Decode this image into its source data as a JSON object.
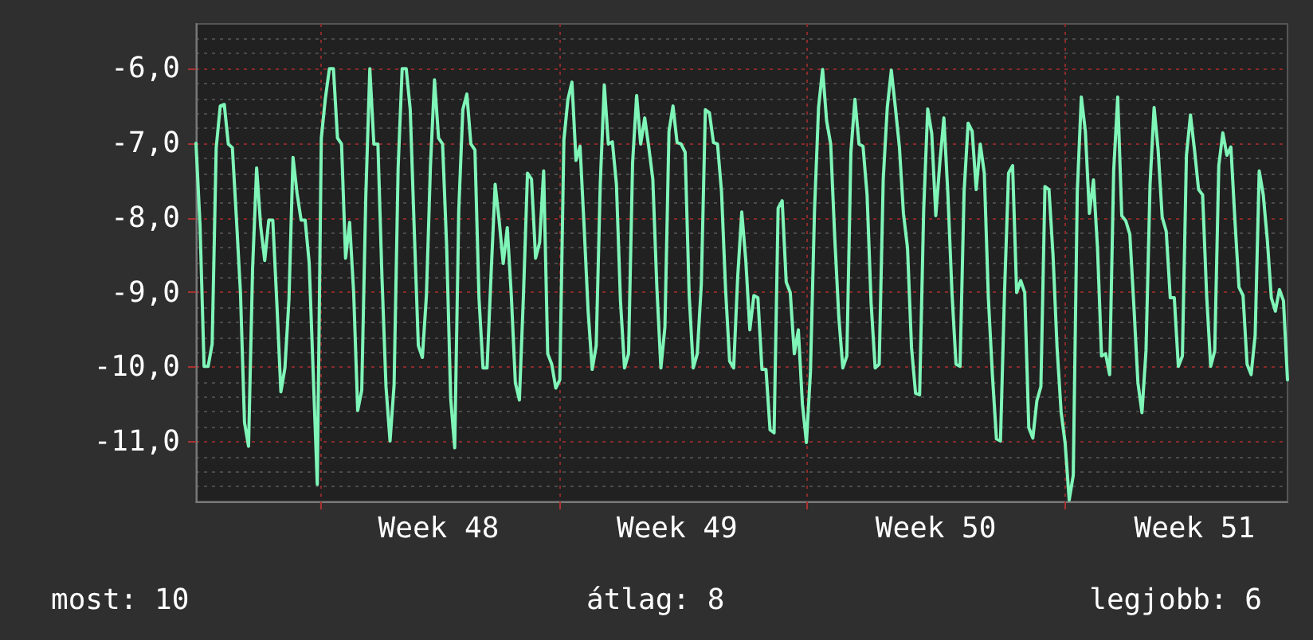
{
  "chart_data": {
    "type": "line",
    "grid": true,
    "marker": "none",
    "line_style": "solid",
    "ylim": [
      -11.8,
      -5.4
    ],
    "yticks": [
      {
        "value": -11,
        "label": "-11,0"
      },
      {
        "value": -10,
        "label": "-10,0"
      },
      {
        "value": -9,
        "label": "-9,0"
      },
      {
        "value": -8,
        "label": "-8,0"
      },
      {
        "value": -7,
        "label": "-7,0"
      },
      {
        "value": -6,
        "label": "-6,0"
      }
    ],
    "annotations": [
      "most: 10",
      "átlag: 8",
      "legjobb: 6"
    ],
    "categories": [
      null,
      null,
      null,
      null,
      null,
      null,
      null,
      null,
      null,
      null,
      null,
      null,
      null,
      null,
      null,
      null,
      null,
      null,
      null,
      null,
      null,
      null,
      null,
      null,
      null,
      null,
      null,
      null,
      null,
      null,
      null,
      null,
      null,
      null,
      null,
      null,
      null,
      null,
      null,
      null,
      null,
      null,
      null,
      null,
      null,
      null,
      null,
      null,
      null,
      null,
      null,
      null,
      null,
      null,
      null,
      null,
      null,
      null,
      null,
      null,
      "Week 48",
      null,
      null,
      null,
      null,
      null,
      null,
      null,
      null,
      null,
      null,
      null,
      null,
      null,
      null,
      null,
      null,
      null,
      null,
      null,
      null,
      null,
      null,
      null,
      null,
      null,
      null,
      null,
      null,
      null,
      null,
      null,
      null,
      null,
      null,
      null,
      null,
      null,
      null,
      null,
      null,
      null,
      null,
      null,
      null,
      null,
      null,
      null,
      null,
      null,
      null,
      null,
      null,
      null,
      null,
      null,
      null,
      null,
      null,
      "Week 49",
      null,
      null,
      null,
      null,
      null,
      null,
      null,
      null,
      null,
      null,
      null,
      null,
      null,
      null,
      null,
      null,
      null,
      null,
      null,
      null,
      null,
      null,
      null,
      null,
      null,
      null,
      null,
      null,
      null,
      null,
      null,
      null,
      null,
      null,
      null,
      null,
      null,
      null,
      null,
      null,
      null,
      null,
      null,
      null,
      null,
      null,
      null,
      null,
      null,
      null,
      null,
      null,
      null,
      null,
      null,
      null,
      null,
      null,
      null,
      null,
      null,
      null,
      null,
      "Week 50",
      null,
      null,
      null,
      null,
      null,
      null,
      null,
      null,
      null,
      null,
      null,
      null,
      null,
      null,
      null,
      null,
      null,
      null,
      null,
      null,
      null,
      null,
      null,
      null,
      null,
      null,
      null,
      null,
      null,
      null,
      null,
      null,
      null,
      null,
      null,
      null,
      null,
      null,
      null,
      null,
      null,
      null,
      null,
      null,
      null,
      null,
      null,
      null,
      null,
      null,
      null,
      null,
      null,
      null,
      null,
      null,
      null,
      null,
      null,
      null,
      null,
      null,
      null,
      "Week 51",
      null,
      null,
      null,
      null,
      null,
      null,
      null,
      null,
      null,
      null,
      null,
      null,
      null,
      null,
      null,
      null,
      null,
      null,
      null,
      null,
      null,
      null,
      null
    ],
    "series": [
      {
        "color": "#7ff5b8",
        "values": [
          -7.0,
          -8.1,
          -9.99,
          -9.99,
          -9.69,
          -7.06,
          -6.5,
          -6.48,
          -7.01,
          -7.06,
          -8.01,
          -9.0,
          -10.74,
          -11.06,
          -8.68,
          -7.33,
          -8.11,
          -8.57,
          -8.03,
          -8.03,
          -9.14,
          -10.33,
          -10.01,
          -9.09,
          -7.19,
          -7.67,
          -8.03,
          -8.03,
          -8.6,
          -10.09,
          -11.57,
          -6.93,
          -6.4,
          -6.0,
          -6.0,
          -6.93,
          -7.01,
          -8.54,
          -8.06,
          -9.0,
          -10.58,
          -10.31,
          -7.72,
          -6.0,
          -7.01,
          -7.01,
          -8.79,
          -10.26,
          -10.99,
          -10.24,
          -7.33,
          -6.0,
          -6.0,
          -6.55,
          -8.18,
          -9.71,
          -9.87,
          -9.04,
          -7.3,
          -6.15,
          -6.93,
          -7.01,
          -8.38,
          -10.42,
          -11.08,
          -7.9,
          -6.55,
          -6.34,
          -7.01,
          -7.09,
          -9.07,
          -10.01,
          -10.01,
          -8.75,
          -7.55,
          -8.04,
          -8.61,
          -8.13,
          -9.04,
          -10.21,
          -10.44,
          -9.04,
          -7.4,
          -7.48,
          -8.54,
          -8.33,
          -7.37,
          -9.82,
          -9.96,
          -10.28,
          -10.17,
          -6.96,
          -6.41,
          -6.18,
          -7.23,
          -7.04,
          -8.11,
          -9.25,
          -10.03,
          -9.71,
          -7.55,
          -6.22,
          -7.01,
          -6.98,
          -7.55,
          -9.11,
          -10.01,
          -9.82,
          -7.26,
          -6.36,
          -7.01,
          -6.66,
          -7.05,
          -7.48,
          -8.93,
          -10.01,
          -9.46,
          -6.84,
          -6.5,
          -6.99,
          -7.01,
          -7.12,
          -9.04,
          -10.01,
          -9.82,
          -8.89,
          -6.55,
          -6.59,
          -6.99,
          -7.01,
          -7.65,
          -8.96,
          -9.92,
          -10.01,
          -8.79,
          -7.92,
          -8.57,
          -9.5,
          -9.04,
          -9.07,
          -10.03,
          -10.03,
          -10.84,
          -10.88,
          -7.87,
          -7.77,
          -8.86,
          -9.0,
          -9.82,
          -9.5,
          -10.49,
          -11.01,
          -10.06,
          -7.9,
          -6.52,
          -6.01,
          -6.7,
          -7.01,
          -8.26,
          -9.32,
          -10.01,
          -9.85,
          -7.12,
          -6.41,
          -7.01,
          -7.04,
          -7.69,
          -9.14,
          -10.01,
          -9.96,
          -7.48,
          -6.52,
          -6.02,
          -6.52,
          -7.05,
          -7.94,
          -8.4,
          -9.74,
          -10.35,
          -10.37,
          -7.9,
          -6.54,
          -6.87,
          -7.97,
          -7.26,
          -6.66,
          -7.69,
          -9.0,
          -9.96,
          -9.99,
          -7.65,
          -6.73,
          -6.84,
          -7.62,
          -7.01,
          -7.4,
          -9.07,
          -10.1,
          -10.96,
          -10.99,
          -9.0,
          -7.4,
          -7.3,
          -9.0,
          -8.84,
          -9.0,
          -10.81,
          -10.95,
          -10.45,
          -10.26,
          -7.58,
          -7.62,
          -8.5,
          -9.74,
          -10.6,
          -11.02,
          -11.78,
          -11.45,
          -7.65,
          -6.38,
          -6.84,
          -7.94,
          -7.49,
          -8.4,
          -9.85,
          -9.82,
          -10.1,
          -7.37,
          -6.38,
          -7.97,
          -8.04,
          -8.22,
          -9.18,
          -10.21,
          -10.61,
          -9.78,
          -7.55,
          -6.52,
          -7.09,
          -7.99,
          -8.18,
          -9.07,
          -9.07,
          -9.99,
          -9.85,
          -7.16,
          -6.62,
          -7.09,
          -7.62,
          -7.69,
          -9.04,
          -9.99,
          -9.78,
          -7.3,
          -6.86,
          -7.16,
          -7.05,
          -8.04,
          -8.93,
          -9.04,
          -9.96,
          -10.1,
          -9.57,
          -7.37,
          -7.69,
          -8.29,
          -9.07,
          -9.25,
          -8.96,
          -9.11,
          -10.17
        ]
      }
    ]
  }
}
